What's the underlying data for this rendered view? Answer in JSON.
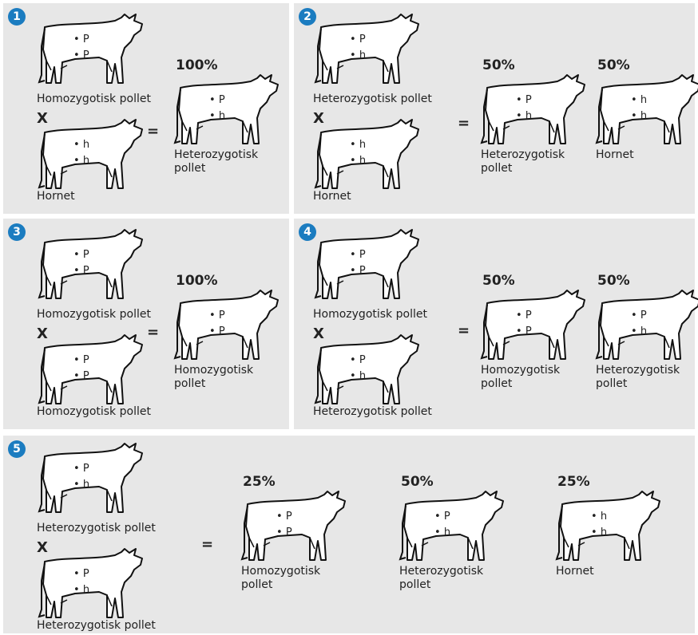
{
  "panels": [
    {
      "number": "1",
      "cross": "X",
      "equals": "=",
      "parents": [
        {
          "genes": [
            "P",
            "P"
          ],
          "label": "Homozygotisk pollet"
        },
        {
          "genes": [
            "h",
            "h"
          ],
          "label": "Hornet"
        }
      ],
      "offspring": [
        {
          "percent": "100%",
          "genes": [
            "P",
            "h"
          ],
          "label": "Heterozygotisk pollet"
        }
      ]
    },
    {
      "number": "2",
      "cross": "X",
      "equals": "=",
      "parents": [
        {
          "genes": [
            "P",
            "h"
          ],
          "label": "Heterozygotisk pollet"
        },
        {
          "genes": [
            "h",
            "h"
          ],
          "label": "Hornet"
        }
      ],
      "offspring": [
        {
          "percent": "50%",
          "genes": [
            "P",
            "h"
          ],
          "label": "Heterozygotisk pollet"
        },
        {
          "percent": "50%",
          "genes": [
            "h",
            "h"
          ],
          "label": "Hornet"
        }
      ]
    },
    {
      "number": "3",
      "cross": "X",
      "equals": "=",
      "parents": [
        {
          "genes": [
            "P",
            "P"
          ],
          "label": "Homozygotisk pollet"
        },
        {
          "genes": [
            "P",
            "P"
          ],
          "label": "Homozygotisk pollet"
        }
      ],
      "offspring": [
        {
          "percent": "100%",
          "genes": [
            "P",
            "P"
          ],
          "label": "Homozygotisk pollet"
        }
      ]
    },
    {
      "number": "4",
      "cross": "X",
      "equals": "=",
      "parents": [
        {
          "genes": [
            "P",
            "P"
          ],
          "label": "Homozygotisk pollet"
        },
        {
          "genes": [
            "P",
            "h"
          ],
          "label": "Heterozygotisk pollet"
        }
      ],
      "offspring": [
        {
          "percent": "50%",
          "genes": [
            "P",
            "P"
          ],
          "label": "Homozygotisk pollet"
        },
        {
          "percent": "50%",
          "genes": [
            "P",
            "h"
          ],
          "label": "Heterozygotisk pollet"
        }
      ]
    },
    {
      "number": "5",
      "cross": "X",
      "equals": "=",
      "parents": [
        {
          "genes": [
            "P",
            "h"
          ],
          "label": "Heterozygotisk pollet"
        },
        {
          "genes": [
            "P",
            "h"
          ],
          "label": "Heterozygotisk pollet"
        }
      ],
      "offspring": [
        {
          "percent": "25%",
          "genes": [
            "P",
            "P"
          ],
          "label": "Homozygotisk pollet"
        },
        {
          "percent": "50%",
          "genes": [
            "P",
            "h"
          ],
          "label": "Heterozygotisk pollet"
        },
        {
          "percent": "25%",
          "genes": [
            "h",
            "h"
          ],
          "label": "Hornet"
        }
      ]
    }
  ]
}
